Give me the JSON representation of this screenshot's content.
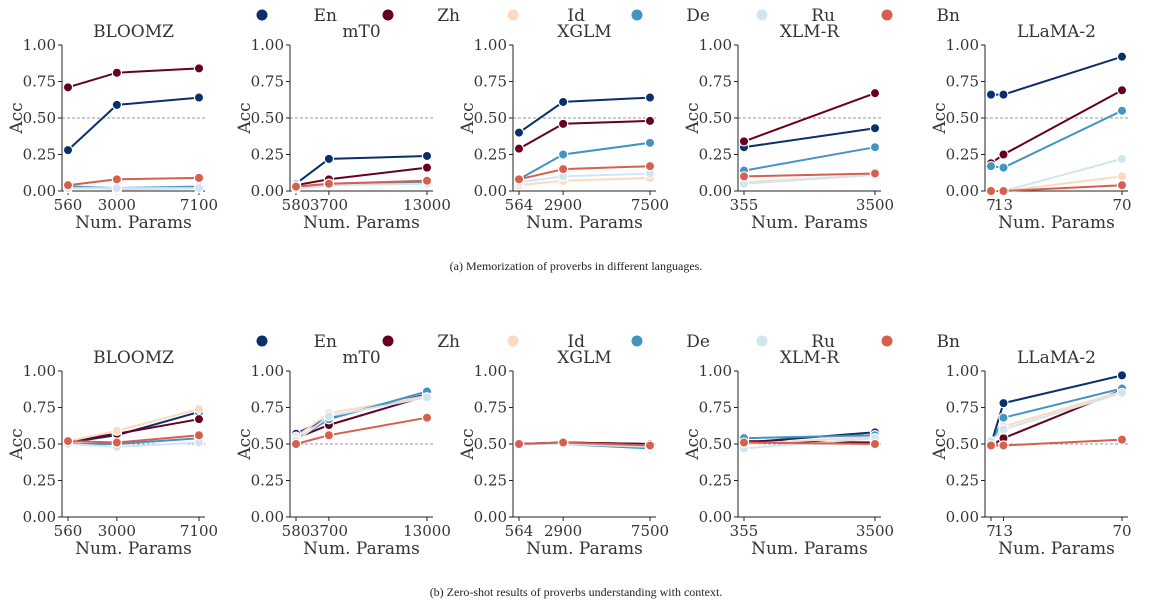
{
  "legend": [
    {
      "name": "En",
      "color": "#08306b"
    },
    {
      "name": "Zh",
      "color": "#67001f"
    },
    {
      "name": "Id",
      "color": "#fdd9c0"
    },
    {
      "name": "De",
      "color": "#4393c3"
    },
    {
      "name": "Ru",
      "color": "#d1e5f0"
    },
    {
      "name": "Bn",
      "color": "#d6604d"
    }
  ],
  "chart_data": [
    {
      "type": "line",
      "caption": "(a) Memorization of proverbs in different languages.",
      "reference_line_y": 0.5,
      "panels": [
        {
          "title": "BLOOMZ",
          "xlabel": "Num. Params",
          "ylabel": "Acc",
          "ylim": [
            0,
            1
          ],
          "yticks": [
            "0.00",
            "0.25",
            "0.50",
            "0.75",
            "1.00"
          ],
          "x": [
            560,
            3000,
            7100
          ],
          "xticks": [
            "560",
            "3000",
            "7100"
          ],
          "series": [
            {
              "name": "En",
              "values": [
                0.28,
                0.59,
                0.64
              ]
            },
            {
              "name": "Zh",
              "values": [
                0.71,
                0.81,
                0.84
              ]
            },
            {
              "name": "Id",
              "values": [
                0.04,
                0.01,
                0.02
              ]
            },
            {
              "name": "De",
              "values": [
                0.03,
                0.02,
                0.03
              ]
            },
            {
              "name": "Ru",
              "values": [
                0.02,
                0.02,
                0.02
              ]
            },
            {
              "name": "Bn",
              "values": [
                0.04,
                0.08,
                0.09
              ]
            }
          ]
        },
        {
          "title": "mT0",
          "xlabel": "Num. Params",
          "ylabel": "Acc",
          "ylim": [
            0,
            1
          ],
          "yticks": [
            "0.00",
            "0.25",
            "0.50",
            "0.75",
            "1.00"
          ],
          "x": [
            580,
            3700,
            13000
          ],
          "xticks": [
            "580",
            "3700",
            "13000"
          ],
          "series": [
            {
              "name": "En",
              "values": [
                0.05,
                0.22,
                0.24
              ]
            },
            {
              "name": "Zh",
              "values": [
                0.04,
                0.08,
                0.16
              ]
            },
            {
              "name": "Id",
              "values": [
                0.03,
                0.05,
                0.07
              ]
            },
            {
              "name": "De",
              "values": [
                0.02,
                0.04,
                0.06
              ]
            },
            {
              "name": "Ru",
              "values": [
                0.02,
                0.04,
                0.05
              ]
            },
            {
              "name": "Bn",
              "values": [
                0.03,
                0.05,
                0.07
              ]
            }
          ]
        },
        {
          "title": "XGLM",
          "xlabel": "Num. Params",
          "ylabel": "Acc",
          "ylim": [
            0,
            1
          ],
          "yticks": [
            "0.00",
            "0.25",
            "0.50",
            "0.75",
            "1.00"
          ],
          "x": [
            564,
            2900,
            7500
          ],
          "xticks": [
            "564",
            "2900",
            "7500"
          ],
          "series": [
            {
              "name": "En",
              "values": [
                0.4,
                0.61,
                0.64
              ]
            },
            {
              "name": "Zh",
              "values": [
                0.29,
                0.46,
                0.48
              ]
            },
            {
              "name": "Id",
              "values": [
                0.04,
                0.07,
                0.09
              ]
            },
            {
              "name": "De",
              "values": [
                0.08,
                0.25,
                0.33
              ]
            },
            {
              "name": "Ru",
              "values": [
                0.06,
                0.1,
                0.12
              ]
            },
            {
              "name": "Bn",
              "values": [
                0.08,
                0.15,
                0.17
              ]
            }
          ]
        },
        {
          "title": "XLM-R",
          "xlabel": "Num. Params",
          "ylabel": "Acc",
          "ylim": [
            0,
            1
          ],
          "yticks": [
            "0.00",
            "0.25",
            "0.50",
            "0.75",
            "1.00"
          ],
          "x": [
            355,
            3500
          ],
          "xticks": [
            "355",
            "3500"
          ],
          "series": [
            {
              "name": "En",
              "values": [
                0.3,
                0.43
              ]
            },
            {
              "name": "Zh",
              "values": [
                0.34,
                0.67
              ]
            },
            {
              "name": "Id",
              "values": [
                0.06,
                0.11
              ]
            },
            {
              "name": "De",
              "values": [
                0.14,
                0.3
              ]
            },
            {
              "name": "Ru",
              "values": [
                0.05,
                0.11
              ]
            },
            {
              "name": "Bn",
              "values": [
                0.1,
                0.12
              ]
            }
          ]
        },
        {
          "title": "LLaMA-2",
          "xlabel": "Num. Params",
          "ylabel": "Acc",
          "ylim": [
            0,
            1
          ],
          "yticks": [
            "0.00",
            "0.25",
            "0.50",
            "0.75",
            "1.00"
          ],
          "x": [
            7,
            13,
            70
          ],
          "xticks": [
            "7",
            "13",
            "70"
          ],
          "series": [
            {
              "name": "En",
              "values": [
                0.66,
                0.66,
                0.92
              ]
            },
            {
              "name": "Zh",
              "values": [
                0.19,
                0.25,
                0.69
              ]
            },
            {
              "name": "Id",
              "values": [
                0.0,
                0.0,
                0.1
              ]
            },
            {
              "name": "De",
              "values": [
                0.17,
                0.16,
                0.55
              ]
            },
            {
              "name": "Ru",
              "values": [
                0.0,
                0.0,
                0.22
              ]
            },
            {
              "name": "Bn",
              "values": [
                0.0,
                0.0,
                0.04
              ]
            }
          ]
        }
      ]
    },
    {
      "type": "line",
      "caption": "(b) Zero-shot results of proverbs understanding with context.",
      "reference_line_y": 0.5,
      "panels": [
        {
          "title": "BLOOMZ",
          "xlabel": "Num. Params",
          "ylabel": "Acc",
          "ylim": [
            0,
            1
          ],
          "yticks": [
            "0.00",
            "0.25",
            "0.50",
            "0.75",
            "1.00"
          ],
          "x": [
            560,
            3000,
            7100
          ],
          "xticks": [
            "560",
            "3000",
            "7100"
          ],
          "series": [
            {
              "name": "En",
              "values": [
                0.51,
                0.56,
                0.72
              ]
            },
            {
              "name": "Zh",
              "values": [
                0.52,
                0.57,
                0.67
              ]
            },
            {
              "name": "Id",
              "values": [
                0.52,
                0.59,
                0.74
              ]
            },
            {
              "name": "De",
              "values": [
                0.5,
                0.5,
                0.54
              ]
            },
            {
              "name": "Ru",
              "values": [
                0.5,
                0.48,
                0.51
              ]
            },
            {
              "name": "Bn",
              "values": [
                0.52,
                0.51,
                0.56
              ]
            }
          ]
        },
        {
          "title": "mT0",
          "xlabel": "Num. Params",
          "ylabel": "Acc",
          "ylim": [
            0,
            1
          ],
          "yticks": [
            "0.00",
            "0.25",
            "0.50",
            "0.75",
            "1.00"
          ],
          "x": [
            580,
            3700,
            13000
          ],
          "xticks": [
            "580",
            "3700",
            "13000"
          ],
          "series": [
            {
              "name": "En",
              "values": [
                0.57,
                0.68,
                0.84
              ]
            },
            {
              "name": "Zh",
              "values": [
                0.54,
                0.63,
                0.83
              ]
            },
            {
              "name": "Id",
              "values": [
                0.55,
                0.71,
                0.83
              ]
            },
            {
              "name": "De",
              "values": [
                0.53,
                0.67,
                0.86
              ]
            },
            {
              "name": "Ru",
              "values": [
                0.52,
                0.69,
                0.82
              ]
            },
            {
              "name": "Bn",
              "values": [
                0.5,
                0.56,
                0.68
              ]
            }
          ]
        },
        {
          "title": "XGLM",
          "xlabel": "Num. Params",
          "ylabel": "Acc",
          "ylim": [
            0,
            1
          ],
          "yticks": [
            "0.00",
            "0.25",
            "0.50",
            "0.75",
            "1.00"
          ],
          "x": [
            564,
            2900,
            7500
          ],
          "xticks": [
            "564",
            "2900",
            "7500"
          ],
          "series": [
            {
              "name": "En",
              "values": [
                0.5,
                0.51,
                0.5
              ]
            },
            {
              "name": "Zh",
              "values": [
                0.5,
                0.51,
                0.5
              ]
            },
            {
              "name": "Id",
              "values": [
                0.5,
                0.5,
                0.49
              ]
            },
            {
              "name": "De",
              "values": [
                0.5,
                0.5,
                0.47
              ]
            },
            {
              "name": "Ru",
              "values": [
                0.5,
                0.5,
                0.48
              ]
            },
            {
              "name": "Bn",
              "values": [
                0.5,
                0.51,
                0.49
              ]
            }
          ]
        },
        {
          "title": "XLM-R",
          "xlabel": "Num. Params",
          "ylabel": "Acc",
          "ylim": [
            0,
            1
          ],
          "yticks": [
            "0.00",
            "0.25",
            "0.50",
            "0.75",
            "1.00"
          ],
          "x": [
            355,
            3500
          ],
          "xticks": [
            "355",
            "3500"
          ],
          "series": [
            {
              "name": "En",
              "values": [
                0.51,
                0.58
              ]
            },
            {
              "name": "Zh",
              "values": [
                0.52,
                0.51
              ]
            },
            {
              "name": "Id",
              "values": [
                0.5,
                0.55
              ]
            },
            {
              "name": "De",
              "values": [
                0.54,
                0.56
              ]
            },
            {
              "name": "Ru",
              "values": [
                0.47,
                0.54
              ]
            },
            {
              "name": "Bn",
              "values": [
                0.51,
                0.5
              ]
            }
          ]
        },
        {
          "title": "LLaMA-2",
          "xlabel": "Num. Params",
          "ylabel": "Acc",
          "ylim": [
            0,
            1
          ],
          "yticks": [
            "0.00",
            "0.25",
            "0.50",
            "0.75",
            "1.00"
          ],
          "x": [
            7,
            13,
            70
          ],
          "xticks": [
            "7",
            "13",
            "70"
          ],
          "series": [
            {
              "name": "En",
              "values": [
                0.5,
                0.78,
                0.97
              ]
            },
            {
              "name": "Zh",
              "values": [
                0.49,
                0.54,
                0.87
              ]
            },
            {
              "name": "Id",
              "values": [
                0.51,
                0.62,
                0.86
              ]
            },
            {
              "name": "De",
              "values": [
                0.5,
                0.68,
                0.88
              ]
            },
            {
              "name": "Ru",
              "values": [
                0.52,
                0.6,
                0.85
              ]
            },
            {
              "name": "Bn",
              "values": [
                0.49,
                0.49,
                0.53
              ]
            }
          ]
        }
      ]
    }
  ]
}
